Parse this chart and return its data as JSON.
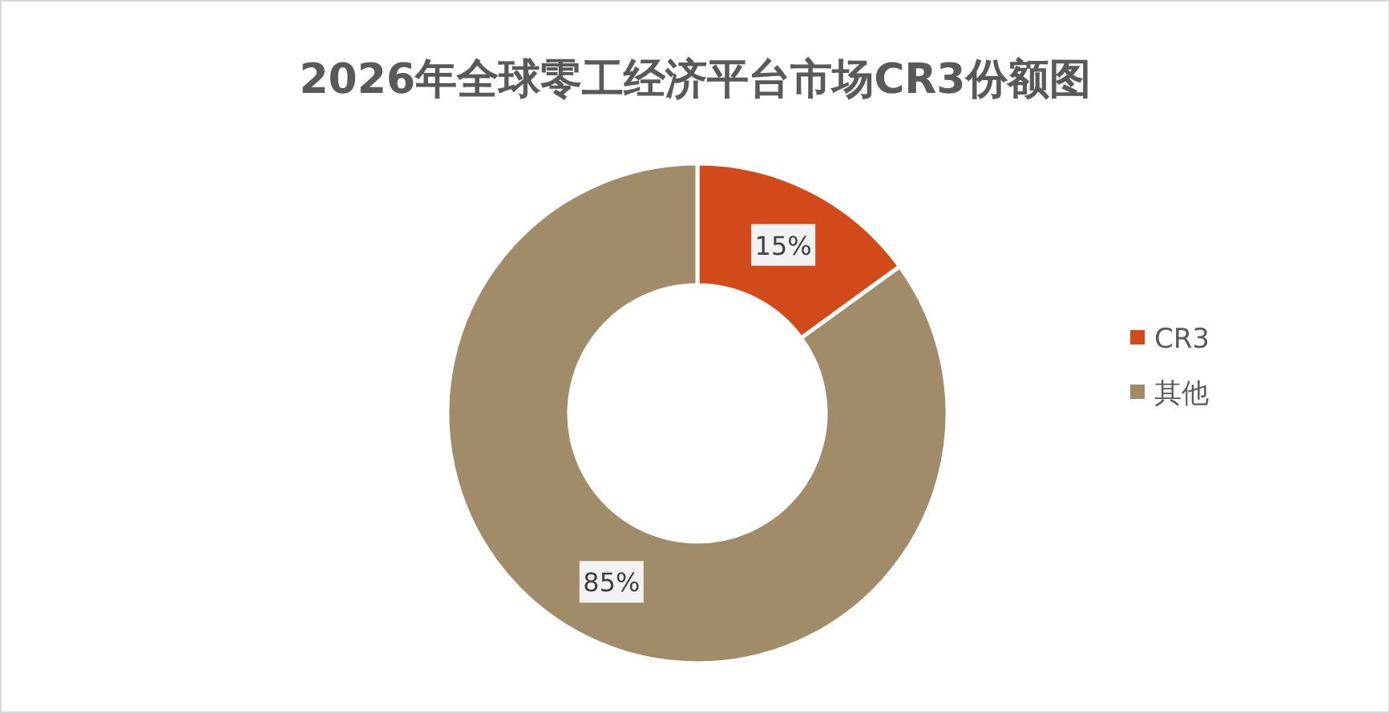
{
  "chart_data": {
    "type": "donut",
    "title": "2026年全球零工经济平台市场CR3份额图",
    "categories": [
      "CR3",
      "其他"
    ],
    "values": [
      15,
      85
    ],
    "colors": [
      "#d24a1a",
      "#a08c69"
    ],
    "value_labels": [
      "15%",
      "85%"
    ],
    "legend": "right"
  }
}
